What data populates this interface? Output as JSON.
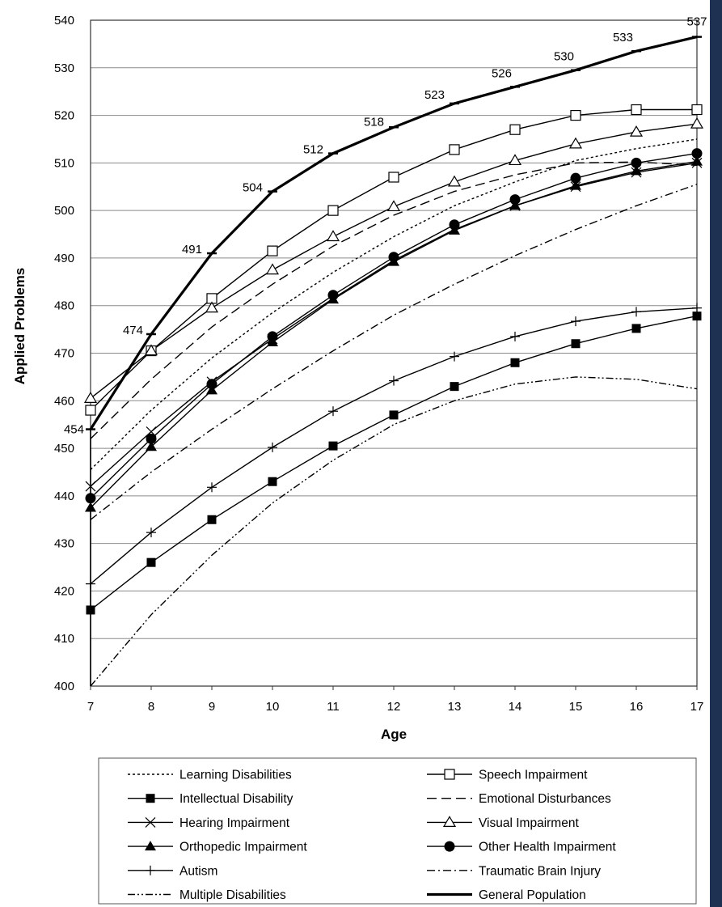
{
  "chart_data": {
    "type": "line",
    "title": "",
    "xlabel": "Age",
    "ylabel": "Applied Problems",
    "x": [
      7,
      8,
      9,
      10,
      11,
      12,
      13,
      14,
      15,
      16,
      17
    ],
    "xlim": [
      7,
      17
    ],
    "ylim": [
      400,
      540
    ],
    "yticks": [
      400,
      410,
      420,
      430,
      440,
      450,
      460,
      470,
      480,
      490,
      500,
      510,
      520,
      530,
      540
    ],
    "grid": "horizontal",
    "legend_position": "bottom",
    "annotations": [
      "454",
      "474",
      "491",
      "504",
      "512",
      "518",
      "523",
      "526",
      "530",
      "533",
      "537"
    ],
    "series": [
      {
        "name": "Learning Disabilities",
        "style": "dotted",
        "marker": "none",
        "values": [
          445.5,
          458,
          469,
          478.5,
          487,
          494.5,
          501,
          506,
          510.5,
          513,
          515
        ]
      },
      {
        "name": "Speech Impairment",
        "style": "solid",
        "marker": "open-square",
        "values": [
          458,
          470.5,
          481.5,
          491.5,
          500,
          507,
          512.8,
          517,
          520,
          521.2,
          521.2
        ]
      },
      {
        "name": "Intellectual Disability",
        "style": "solid",
        "marker": "filled-square",
        "values": [
          416,
          426,
          435,
          443,
          450.5,
          457,
          463,
          468,
          472,
          475.2,
          477.8
        ]
      },
      {
        "name": "Emotional Disturbances",
        "style": "long-dash",
        "marker": "none",
        "values": [
          452,
          464.5,
          475.5,
          484.5,
          492.5,
          499,
          504,
          507.5,
          510,
          510.2,
          509.5
        ]
      },
      {
        "name": "Hearing Impairment",
        "style": "solid",
        "marker": "x",
        "values": [
          442,
          453.5,
          464,
          473,
          481.5,
          489.5,
          496,
          501,
          505,
          508,
          510
        ]
      },
      {
        "name": "Visual Impairment",
        "style": "solid",
        "marker": "open-triangle",
        "values": [
          460.5,
          470.5,
          479.5,
          487.5,
          494.5,
          500.8,
          506,
          510.5,
          514,
          516.5,
          518.2
        ]
      },
      {
        "name": "Orthopedic Impairment",
        "style": "solid",
        "marker": "filled-triangle",
        "values": [
          437.5,
          450.3,
          462.2,
          472.3,
          481.3,
          489.2,
          495.8,
          501,
          505.2,
          508.3,
          510.3
        ]
      },
      {
        "name": "Other Health Impairment",
        "style": "solid",
        "marker": "filled-circle",
        "values": [
          439.5,
          452,
          463.5,
          473.5,
          482.2,
          490.2,
          497,
          502.3,
          506.8,
          510,
          512
        ]
      },
      {
        "name": "Autism",
        "style": "solid",
        "marker": "plus",
        "values": [
          421.5,
          432.3,
          441.8,
          450.2,
          457.8,
          464.2,
          469.3,
          473.5,
          476.7,
          478.7,
          479.5
        ]
      },
      {
        "name": "Traumatic Brain Injury",
        "style": "dash-dot",
        "marker": "none",
        "values": [
          435,
          445,
          454,
          462.5,
          470.5,
          478,
          484.5,
          490.5,
          496,
          501,
          505.5
        ]
      },
      {
        "name": "Multiple Disabilities",
        "style": "dash-dot-dot",
        "marker": "none",
        "values": [
          400,
          415,
          427.5,
          438.5,
          447.5,
          455,
          460,
          463.5,
          465,
          464.5,
          462.5
        ]
      },
      {
        "name": "General Population",
        "style": "thick",
        "marker": "tick",
        "values": [
          454,
          474,
          491,
          504,
          512,
          517.5,
          522.5,
          526,
          529.5,
          533.5,
          536.5
        ]
      }
    ]
  }
}
